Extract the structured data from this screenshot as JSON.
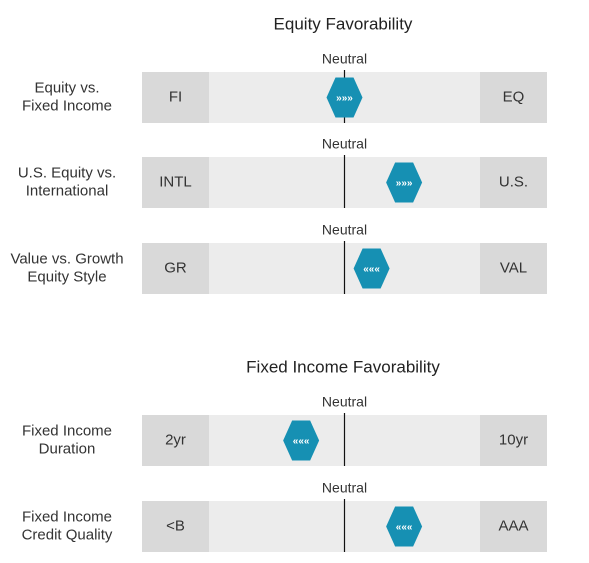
{
  "position_range": [
    -1,
    1
  ],
  "sections": [
    {
      "title": "Equity Favorability",
      "rows": [
        {
          "label": [
            "Equity vs.",
            "Fixed Income"
          ],
          "neutral": "Neutral",
          "left": "FI",
          "right": "EQ",
          "arrows": "»»»",
          "position": 0
        },
        {
          "label": [
            "U.S. Equity vs.",
            "International"
          ],
          "neutral": "Neutral",
          "left": "INTL",
          "right": "U.S.",
          "arrows": "»»»",
          "position": 0.44
        },
        {
          "label": [
            "Value vs. Growth",
            "Equity Style"
          ],
          "neutral": "Neutral",
          "left": "GR",
          "right": "VAL",
          "arrows": "«««",
          "position": 0.2
        }
      ]
    },
    {
      "title": "Fixed Income Favorability",
      "rows": [
        {
          "label": [
            "Fixed Income",
            "Duration"
          ],
          "neutral": "Neutral",
          "left": "2yr",
          "right": "10yr",
          "arrows": "«««",
          "position": -0.32
        },
        {
          "label": [
            "Fixed Income",
            "Credit Quality"
          ],
          "neutral": "Neutral",
          "left": "<B",
          "right": "AAA",
          "arrows": "«««",
          "position": 0.44
        }
      ]
    }
  ]
}
